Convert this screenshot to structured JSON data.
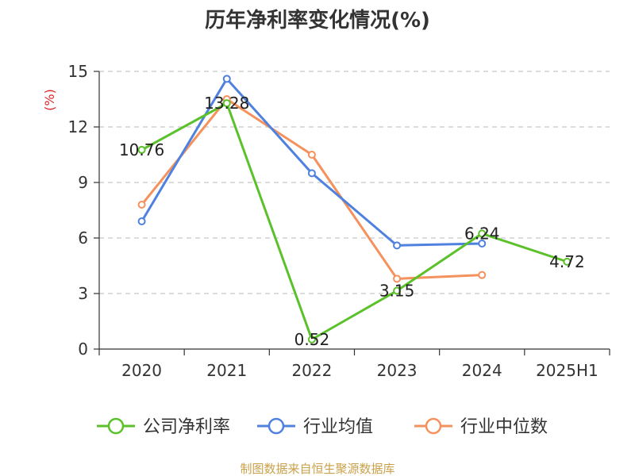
{
  "chart_data": {
    "type": "line",
    "title": "历年净利率变化情况(%)",
    "ylabel": "(%)",
    "xlabel": "",
    "categories": [
      "2020",
      "2021",
      "2022",
      "2023",
      "2024",
      "2025H1"
    ],
    "ylim": [
      0,
      15
    ],
    "yticks": [
      0,
      3,
      6,
      9,
      12,
      15
    ],
    "grid": true,
    "legend_position": "bottom",
    "series": [
      {
        "name": "公司净利率",
        "color": "#5bc12a",
        "values": [
          10.76,
          13.28,
          0.52,
          3.15,
          6.24,
          4.72
        ],
        "labels": [
          "10.76",
          "13.28",
          "0.52",
          "3.15",
          "6.24",
          "4.72"
        ]
      },
      {
        "name": "行业均值",
        "color": "#4f81df",
        "values": [
          6.9,
          14.6,
          9.5,
          5.6,
          5.7,
          null
        ]
      },
      {
        "name": "行业中位数",
        "color": "#f4915c",
        "values": [
          7.8,
          13.5,
          10.5,
          3.8,
          4.0,
          null
        ]
      }
    ],
    "source": "制图数据来自恒生聚源数据库"
  },
  "colors": {
    "unit": "#d9262c",
    "source": "#c9a14a",
    "axis": "#333333",
    "grid": "#c8c8c8"
  }
}
